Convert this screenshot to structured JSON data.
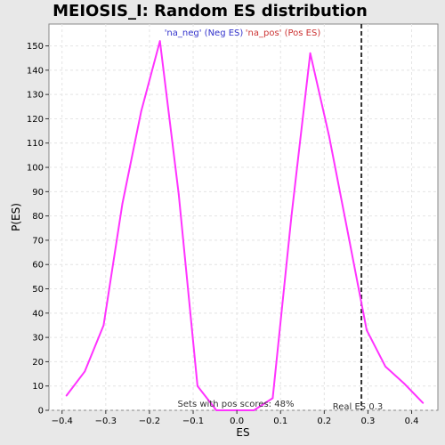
{
  "chart_data": {
    "type": "line",
    "title": "MEIOSIS_I: Random ES distribution",
    "xlabel": "ES",
    "ylabel": "P(ES)",
    "xlim": [
      -0.43,
      0.46
    ],
    "ylim": [
      0,
      159
    ],
    "x_ticks": [
      -0.4,
      -0.3,
      -0.2,
      -0.1,
      0.0,
      0.1,
      0.2,
      0.3,
      0.4
    ],
    "x_tick_labels": [
      "−0.4",
      "−0.3",
      "−0.2",
      "−0.1",
      "0.0",
      "0.1",
      "0.2",
      "0.3",
      "0.4"
    ],
    "y_ticks": [
      0,
      10,
      20,
      30,
      40,
      50,
      60,
      70,
      80,
      90,
      100,
      110,
      120,
      130,
      140,
      150
    ],
    "y_tick_labels": [
      "0",
      "10",
      "20",
      "30",
      "40",
      "50",
      "60",
      "70",
      "80",
      "90",
      "100",
      "110",
      "120",
      "130",
      "140",
      "150"
    ],
    "grid": true,
    "series": [
      {
        "color": "#ff33ff",
        "x": [
          -0.39,
          -0.348,
          -0.305,
          -0.262,
          -0.219,
          -0.176,
          -0.133,
          -0.09,
          -0.047,
          -0.004,
          0.039,
          0.082,
          0.125,
          0.168,
          0.211,
          0.254,
          0.297,
          0.34,
          0.383,
          0.426
        ],
        "y": [
          6,
          16,
          35,
          85,
          123,
          152,
          89,
          10,
          0,
          0,
          0,
          5,
          80,
          147,
          113,
          73,
          33,
          18,
          11,
          3
        ]
      }
    ],
    "legend": [
      {
        "label": "'na_neg' (Neg ES)",
        "color": "#3333cc"
      },
      {
        "label": "'na_pos' (Pos ES)",
        "color": "#cc3333"
      }
    ],
    "vline": {
      "x": 0.285,
      "style": "dashed",
      "color": "#333333",
      "label": "Real ES 0.3"
    },
    "annotation": "Sets with pos scores: 48%"
  }
}
